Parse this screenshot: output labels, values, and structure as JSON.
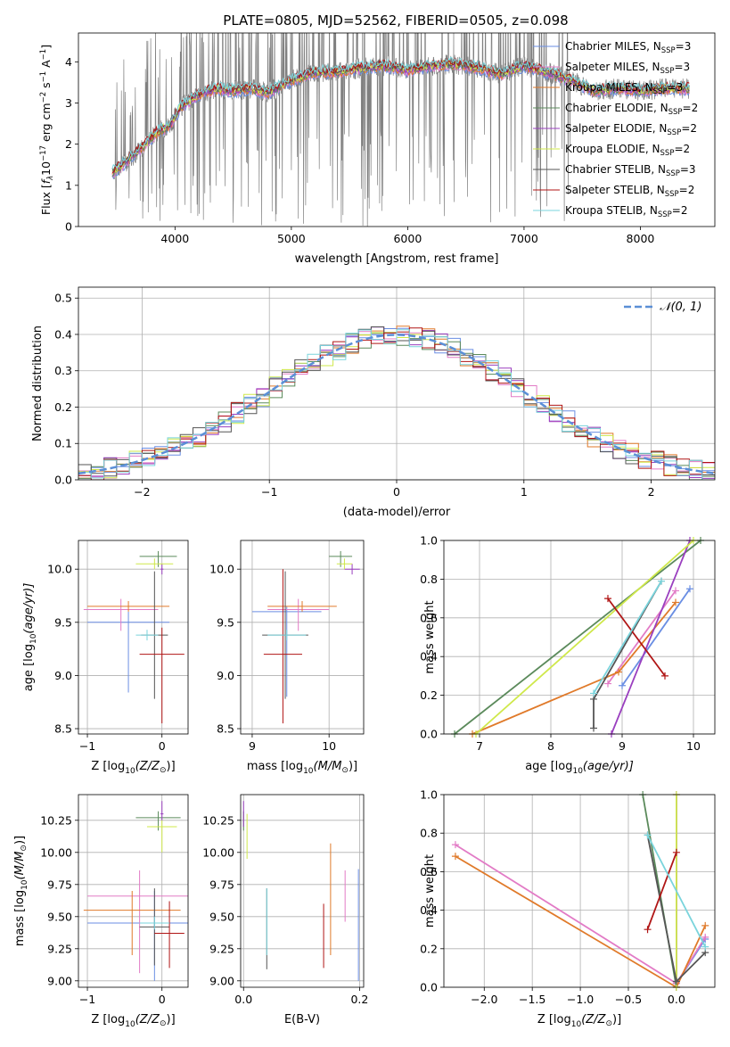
{
  "figure_title": "PLATE=0805, MJD=52562, FIBERID=0505, z=0.098",
  "legend_spectrum": [
    {
      "label": "Chabrier MILES, N",
      "sub": "SSP",
      "tail": "=3",
      "color": "#6a8ee3"
    },
    {
      "label": "Salpeter MILES, N",
      "sub": "SSP",
      "tail": "=3",
      "color": "#e27bc6"
    },
    {
      "label": "Kroupa MILES, N",
      "sub": "SSP",
      "tail": "=3",
      "color": "#e07a2a"
    },
    {
      "label": "Chabrier ELODIE, N",
      "sub": "SSP",
      "tail": "=2",
      "color": "#5b8a5b"
    },
    {
      "label": "Salpeter ELODIE, N",
      "sub": "SSP",
      "tail": "=2",
      "color": "#9a3fbf"
    },
    {
      "label": "Kroupa ELODIE, N",
      "sub": "SSP",
      "tail": "=2",
      "color": "#cfe84a"
    },
    {
      "label": "Chabrier STELIB, N",
      "sub": "SSP",
      "tail": "=3",
      "color": "#555555"
    },
    {
      "label": "Salpeter STELIB, N",
      "sub": "SSP",
      "tail": "=2",
      "color": "#b01515"
    },
    {
      "label": "Kroupa STELIB, N",
      "sub": "SSP",
      "tail": "=2",
      "color": "#7ad4dc"
    }
  ],
  "chart_data": [
    {
      "type": "line",
      "panel": "spectrum",
      "xlabel": "wavelength [Angstrom, rest frame]",
      "ylabel_main": "Flux [",
      "ylabel_f": "f",
      "ylabel_sub": "λ",
      "ylabel_rest": "10",
      "ylabel_exp1": "−17",
      "ylabel_mid": " erg cm",
      "ylabel_exp2": "−2",
      "ylabel_mid2": " s",
      "ylabel_exp3": "−1",
      "ylabel_end": " A",
      "ylabel_exp4": "−1",
      "ylabel_close": "]",
      "xlim": [
        3170,
        8640
      ],
      "ylim": [
        0,
        4.7
      ],
      "xticks": [
        4000,
        5000,
        6000,
        7000,
        8000
      ],
      "yticks": [
        0,
        1,
        2,
        3,
        4
      ],
      "grid": false,
      "legend": "upper right",
      "continuum_x": [
        3450,
        3550,
        3650,
        3750,
        3850,
        3950,
        4050,
        4200,
        4350,
        4500,
        4650,
        4800,
        5000,
        5200,
        5400,
        5600,
        5800,
        6000,
        6200,
        6400,
        6600,
        6800,
        7000,
        7200,
        7400,
        7600,
        7800,
        8000,
        8200,
        8400
      ],
      "continuum_y": [
        1.3,
        1.5,
        1.75,
        2.0,
        2.3,
        2.45,
        2.9,
        3.2,
        3.35,
        3.3,
        3.35,
        3.25,
        3.55,
        3.75,
        3.75,
        3.85,
        3.9,
        3.8,
        3.9,
        3.95,
        3.85,
        3.7,
        3.9,
        3.75,
        3.55,
        3.3,
        3.35,
        3.3,
        3.35,
        3.35
      ]
    },
    {
      "type": "line",
      "panel": "residual-histogram",
      "xlabel": "(data-model)/error",
      "ylabel": "Normed distribution",
      "xlim": [
        -2.5,
        2.5
      ],
      "ylim": [
        0,
        0.53
      ],
      "xticks": [
        -2,
        -1,
        0,
        1,
        2
      ],
      "yticks": [
        0.0,
        0.1,
        0.2,
        0.3,
        0.4,
        0.5
      ],
      "grid": true,
      "legend_label": "𝒩(0, 1)",
      "legend": "upper right",
      "bin_width": 0.1,
      "bin_start": -2.5
    },
    {
      "type": "scatter",
      "panel": "age-vs-Z",
      "xlabel": "Z [log",
      "xlabel_sub": "10",
      "xlabel_rest": "(Z/Z",
      "xlabel_sun": "⊙",
      "xlabel_close": ")]",
      "ylabel": "age  [log",
      "ylabel_sub": "10",
      "ylabel_rest": "(age/yr)]",
      "xlim": [
        -1.12,
        0.35
      ],
      "ylim": [
        8.45,
        10.27
      ],
      "xticks": [
        -1,
        0
      ],
      "yticks": [
        8.5,
        9.0,
        9.5,
        10.0
      ],
      "tick_labels_x": [
        "−1",
        "0"
      ],
      "tick_labels_y": [
        "8.5",
        "9.0",
        "9.5",
        "10.0"
      ],
      "grid": true,
      "points": [
        {
          "series": 0,
          "x": -0.45,
          "y": 9.5,
          "xerr": 0.55,
          "yerr": [
            0.66,
            0.1
          ]
        },
        {
          "series": 1,
          "x": -0.55,
          "y": 9.62,
          "xerr": 0.5,
          "yerr": [
            0.2,
            0.1
          ]
        },
        {
          "series": 2,
          "x": -0.45,
          "y": 9.65,
          "xerr": 0.55,
          "yerr": [
            0.05,
            0.05
          ]
        },
        {
          "series": 3,
          "x": -0.05,
          "y": 10.12,
          "xerr": 0.25,
          "yerr": [
            0.1,
            0.05
          ]
        },
        {
          "series": 4,
          "x": 0.0,
          "y": 10.0,
          "xerr": 0.02,
          "yerr": [
            0.05,
            0.05
          ]
        },
        {
          "series": 5,
          "x": -0.1,
          "y": 10.05,
          "xerr": 0.25,
          "yerr": [
            0.05,
            0.05
          ]
        },
        {
          "series": 6,
          "x": -0.1,
          "y": 9.38,
          "xerr": 0.18,
          "yerr": [
            0.6,
            0.6
          ]
        },
        {
          "series": 7,
          "x": 0.0,
          "y": 9.2,
          "xerr": 0.3,
          "yerr": [
            0.65,
            0.25
          ]
        },
        {
          "series": 8,
          "x": -0.2,
          "y": 9.38,
          "xerr": 0.15,
          "yerr": [
            0.05,
            0.05
          ]
        }
      ]
    },
    {
      "type": "scatter",
      "panel": "age-vs-mass",
      "xlabel": "mass [log",
      "xlabel_sub": "10",
      "xlabel_rest": "(M/M",
      "xlabel_sun": "⊙",
      "xlabel_close": ")]",
      "xlim": [
        8.85,
        10.45
      ],
      "ylim": [
        8.45,
        10.27
      ],
      "xticks": [
        9,
        10
      ],
      "yticks": [
        8.5,
        9.0,
        9.5,
        10.0
      ],
      "tick_labels_x": [
        "9",
        "10"
      ],
      "tick_labels_y": [
        "8.5",
        "9.0",
        "9.5",
        "10.0"
      ],
      "grid": true,
      "points": [
        {
          "series": 0,
          "x": 9.45,
          "y": 9.6,
          "xerr": 0.45,
          "yerr": [
            0.8,
            0.05
          ]
        },
        {
          "series": 1,
          "x": 9.6,
          "y": 9.62,
          "xerr": 0.4,
          "yerr": [
            0.2,
            0.1
          ]
        },
        {
          "series": 2,
          "x": 9.65,
          "y": 9.65,
          "xerr": 0.45,
          "yerr": [
            0.05,
            0.05
          ]
        },
        {
          "series": 3,
          "x": 10.15,
          "y": 10.12,
          "xerr": 0.15,
          "yerr": [
            0.1,
            0.05
          ]
        },
        {
          "series": 4,
          "x": 10.3,
          "y": 10.0,
          "xerr": 0.1,
          "yerr": [
            0.05,
            0.05
          ]
        },
        {
          "series": 5,
          "x": 10.2,
          "y": 10.05,
          "xerr": 0.1,
          "yerr": [
            0.05,
            0.05
          ]
        },
        {
          "series": 6,
          "x": 9.43,
          "y": 9.38,
          "xerr": 0.3,
          "yerr": [
            0.6,
            0.6
          ]
        },
        {
          "series": 7,
          "x": 9.4,
          "y": 9.2,
          "xerr": 0.25,
          "yerr": [
            0.65,
            0.8
          ]
        },
        {
          "series": 8,
          "x": 9.45,
          "y": 9.38,
          "xerr": 0.25,
          "yerr": [
            0.05,
            0.05
          ]
        }
      ]
    },
    {
      "type": "line",
      "panel": "massweight-vs-age",
      "xlabel": "age  [log",
      "xlabel_sub": "10",
      "xlabel_rest": "(age/yr)]",
      "ylabel": "mass weight",
      "xlim": [
        6.5,
        10.3
      ],
      "ylim": [
        0,
        1.0
      ],
      "xticks": [
        7,
        8,
        9,
        10
      ],
      "yticks": [
        0.0,
        0.2,
        0.4,
        0.6,
        0.8,
        1.0
      ],
      "grid": true,
      "series": [
        {
          "index": 0,
          "x": [
            9.0,
            9.95
          ],
          "y": [
            0.25,
            0.75
          ]
        },
        {
          "index": 1,
          "x": [
            8.8,
            9.75
          ],
          "y": [
            0.26,
            0.74
          ]
        },
        {
          "index": 2,
          "x": [
            6.9,
            8.95,
            9.75
          ],
          "y": [
            0.0,
            0.32,
            0.68
          ]
        },
        {
          "index": 3,
          "x": [
            6.65,
            10.1
          ],
          "y": [
            0.0,
            1.0
          ]
        },
        {
          "index": 4,
          "x": [
            8.85,
            9.95
          ],
          "y": [
            0.0,
            1.0
          ]
        },
        {
          "index": 5,
          "x": [
            6.95,
            10.0
          ],
          "y": [
            0.0,
            1.0
          ]
        },
        {
          "index": 6,
          "x": [
            8.6,
            8.6,
            9.55
          ],
          "y": [
            0.03,
            0.18,
            0.79
          ]
        },
        {
          "index": 7,
          "x": [
            8.8,
            9.6
          ],
          "y": [
            0.7,
            0.3
          ]
        },
        {
          "index": 8,
          "x": [
            8.6,
            9.55
          ],
          "y": [
            0.21,
            0.79
          ]
        }
      ]
    },
    {
      "type": "scatter",
      "panel": "mass-vs-Z",
      "xlabel": "Z [log",
      "xlabel_sub": "10",
      "xlabel_rest": "(Z/Z",
      "xlabel_sun": "⊙",
      "xlabel_close": ")]",
      "ylabel": "mass [log",
      "ylabel_sub": "10",
      "ylabel_rest": "(M/M",
      "ylabel_sun": "⊙",
      "ylabel_close": ")]",
      "xlim": [
        -1.12,
        0.35
      ],
      "ylim": [
        8.95,
        10.45
      ],
      "xticks": [
        -1,
        0
      ],
      "yticks": [
        9.0,
        9.25,
        9.5,
        9.75,
        10.0,
        10.25
      ],
      "tick_labels_x": [
        "−1",
        "0"
      ],
      "tick_labels_y": [
        "9.00",
        "9.25",
        "9.50",
        "9.75",
        "10.00",
        "10.25"
      ],
      "grid": true,
      "points": [
        {
          "series": 0,
          "x": -0.1,
          "y": 9.45,
          "xerr": 0.9,
          "yerr": [
            0.45,
            0.25
          ]
        },
        {
          "series": 1,
          "x": -0.3,
          "y": 9.66,
          "xerr": 0.7,
          "yerr": [
            0.6,
            0.2
          ]
        },
        {
          "series": 2,
          "x": -0.4,
          "y": 9.55,
          "xerr": 0.65,
          "yerr": [
            0.35,
            0.15
          ]
        },
        {
          "series": 3,
          "x": -0.05,
          "y": 10.27,
          "xerr": 0.3,
          "yerr": [
            0.1,
            0.05
          ]
        },
        {
          "series": 4,
          "x": 0.0,
          "y": 10.3,
          "xerr": 0.02,
          "yerr": [
            0.05,
            0.1
          ]
        },
        {
          "series": 5,
          "x": 0.0,
          "y": 10.2,
          "xerr": 0.2,
          "yerr": [
            0.2,
            0.05
          ]
        },
        {
          "series": 6,
          "x": -0.1,
          "y": 9.42,
          "xerr": 0.2,
          "yerr": [
            0.3,
            0.3
          ]
        },
        {
          "series": 7,
          "x": 0.1,
          "y": 9.37,
          "xerr": 0.2,
          "yerr": [
            0.27,
            0.25
          ]
        },
        {
          "series": 8,
          "x": -0.1,
          "y": 9.45,
          "xerr": 0.2,
          "yerr": [
            0.05,
            0.05
          ]
        }
      ]
    },
    {
      "type": "scatter",
      "panel": "mass-vs-EBV",
      "xlabel": "E(B-V)",
      "xlim": [
        -0.005,
        0.207
      ],
      "ylim": [
        8.95,
        10.45
      ],
      "xticks": [
        0.0,
        0.2
      ],
      "yticks": [
        9.0,
        9.25,
        9.5,
        9.75,
        10.0,
        10.25
      ],
      "tick_labels_x": [
        "0.0",
        "0.2"
      ],
      "tick_labels_y": [
        "9.00",
        "9.25",
        "9.50",
        "9.75",
        "10.00",
        "10.25"
      ],
      "grid": true,
      "points": [
        {
          "series": 0,
          "x": 0.198,
          "y": 9.45,
          "yerr": [
            0.45,
            0.42
          ]
        },
        {
          "series": 1,
          "x": 0.175,
          "y": 9.66,
          "yerr": [
            0.2,
            0.2
          ]
        },
        {
          "series": 2,
          "x": 0.15,
          "y": 9.55,
          "yerr": [
            0.35,
            0.52
          ]
        },
        {
          "series": 3,
          "x": 0.0,
          "y": 10.27,
          "yerr": [
            0.1,
            0.05
          ]
        },
        {
          "series": 4,
          "x": 0.0,
          "y": 10.3,
          "yerr": [
            0.1,
            0.1
          ]
        },
        {
          "series": 5,
          "x": 0.006,
          "y": 10.2,
          "yerr": [
            0.25,
            0.1
          ]
        },
        {
          "series": 6,
          "x": 0.04,
          "y": 9.42,
          "yerr": [
            0.33,
            0.3
          ]
        },
        {
          "series": 7,
          "x": 0.138,
          "y": 9.37,
          "yerr": [
            0.27,
            0.23
          ]
        },
        {
          "series": 8,
          "x": 0.04,
          "y": 9.45,
          "yerr": [
            0.25,
            0.27
          ]
        }
      ]
    },
    {
      "type": "line",
      "panel": "massweight-vs-Z",
      "xlabel": "Z [log",
      "xlabel_sub": "10",
      "xlabel_rest": "(Z/Z",
      "xlabel_sun": "⊙",
      "xlabel_close": ")]",
      "ylabel": "mass weight",
      "xlim": [
        -2.42,
        0.4
      ],
      "ylim": [
        0,
        1.0
      ],
      "xticks": [
        -2.0,
        -1.5,
        -1.0,
        -0.5,
        0.0
      ],
      "tick_labels_x": [
        "−2.0",
        "−1.5",
        "−1.0",
        "−0.5",
        "0.0"
      ],
      "yticks": [
        0.0,
        0.2,
        0.4,
        0.6,
        0.8,
        1.0
      ],
      "grid": true,
      "series": [
        {
          "index": 0,
          "x": [
            0.0,
            0.3
          ],
          "y": [
            0.02,
            0.25
          ]
        },
        {
          "index": 1,
          "x": [
            -2.3,
            0.0,
            0.3
          ],
          "y": [
            0.74,
            0.02,
            0.26
          ]
        },
        {
          "index": 2,
          "x": [
            -2.3,
            0.0,
            0.3
          ],
          "y": [
            0.68,
            0.0,
            0.32
          ]
        },
        {
          "index": 3,
          "x": [
            -0.35,
            0.0
          ],
          "y": [
            1.0,
            0.0
          ]
        },
        {
          "index": 4,
          "x": [
            0.0,
            0.0
          ],
          "y": [
            0.0,
            1.0
          ]
        },
        {
          "index": 5,
          "x": [
            0.0,
            0.0
          ],
          "y": [
            0.0,
            1.0
          ]
        },
        {
          "index": 6,
          "x": [
            -0.3,
            0.0,
            0.3
          ],
          "y": [
            0.79,
            0.03,
            0.18
          ]
        },
        {
          "index": 7,
          "x": [
            -0.3,
            0.0
          ],
          "y": [
            0.3,
            0.7
          ]
        },
        {
          "index": 8,
          "x": [
            -0.3,
            0.3
          ],
          "y": [
            0.79,
            0.21
          ]
        }
      ]
    }
  ]
}
